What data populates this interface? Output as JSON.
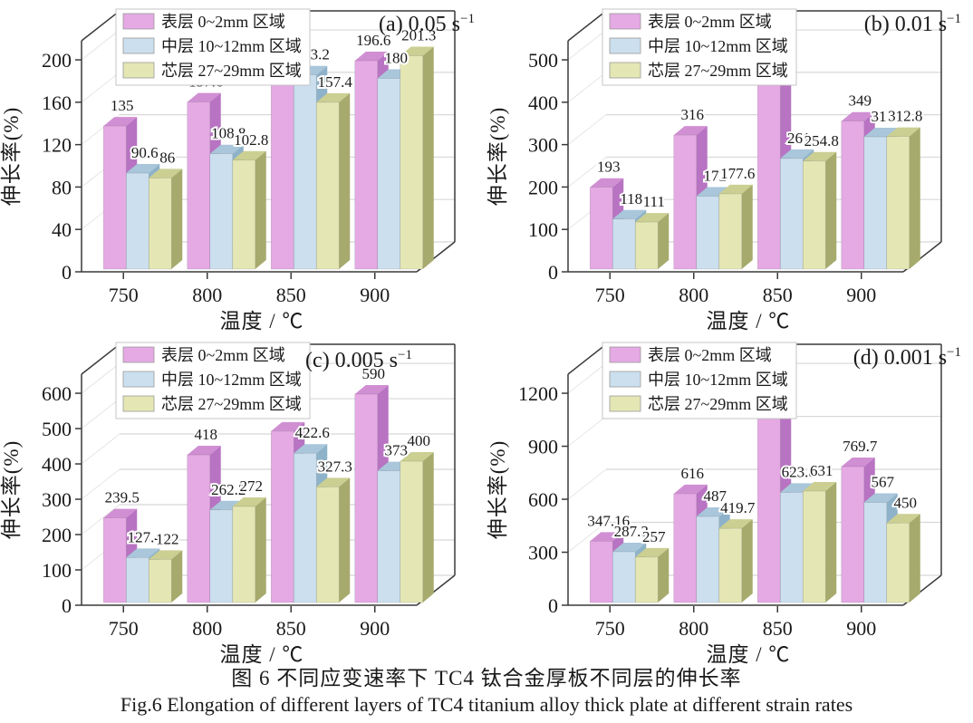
{
  "figure_caption": {
    "zh": "图 6  不同应变速率下 TC4 钛合金厚板不同层的伸长率",
    "en": "Fig.6  Elongation of different layers of TC4 titanium alloy thick plate at different strain rates"
  },
  "colors": {
    "axis": "#3a3a3a",
    "grid_back_wall": "#d8d8d8",
    "grid_left_wall": "#e6e6e6",
    "text": "#1a1a1a",
    "legend_border": "#c4c4c4",
    "legend_background": "#ffffff"
  },
  "series_styles": [
    {
      "name": "表层 0~2mm 区域",
      "front": "#e5a9e4",
      "top": "#d08fd3",
      "side": "#b873c2"
    },
    {
      "name": "中层 10~12mm 区域",
      "front": "#cbdfee",
      "top": "#a9c6da",
      "side": "#8eb2c9"
    },
    {
      "name": "芯层 27~29mm 区域",
      "front": "#e4e6b4",
      "top": "#cbcf92",
      "side": "#a6aa6c"
    }
  ],
  "chart_data": [
    {
      "type": "bar",
      "panel": "(a)",
      "strain_rate": "0.05 s⁻¹",
      "rate_base": "0.05 s",
      "rate_sup": "−1",
      "title_align": "far-right",
      "categories": [
        "750",
        "800",
        "850",
        "900"
      ],
      "xlabel": "温度 / ℃",
      "ylabel": "伸长率(%)",
      "ylim": [
        0,
        200
      ],
      "yticks": [
        0,
        40,
        80,
        120,
        160,
        200
      ],
      "grid": "horizontal-back-wall",
      "legend_position": "top-left",
      "series": [
        {
          "name": "表层 0~2mm 区域",
          "values": [
            135,
            157.6,
            197.6,
            196.6
          ]
        },
        {
          "name": "中层 10~12mm 区域",
          "values": [
            90.6,
            108.8,
            183.2,
            180
          ]
        },
        {
          "name": "芯层 27~29mm 区域",
          "values": [
            86,
            102.8,
            157.4,
            201.3
          ]
        }
      ]
    },
    {
      "type": "bar",
      "panel": "(b)",
      "strain_rate": "0.01 s⁻¹",
      "rate_base": "0.01 s",
      "rate_sup": "−1",
      "title_align": "far-right",
      "categories": [
        "750",
        "800",
        "850",
        "900"
      ],
      "xlabel": "温度 / ℃",
      "ylabel": "伸长率(%)",
      "ylim": [
        0,
        500
      ],
      "yticks": [
        0,
        100,
        200,
        300,
        400,
        500
      ],
      "grid": "horizontal-back-wall",
      "legend_position": "top-left",
      "series": [
        {
          "name": "表层 0~2mm 区域",
          "values": [
            193,
            316,
            456,
            349
          ]
        },
        {
          "name": "中层 10~12mm 区域",
          "values": [
            118,
            172,
            261,
            312
          ]
        },
        {
          "name": "芯层 27~29mm 区域",
          "values": [
            111,
            177.6,
            254.8,
            312.8
          ]
        }
      ]
    },
    {
      "type": "bar",
      "panel": "(c)",
      "strain_rate": "0.005 s⁻¹",
      "rate_base": "0.005 s",
      "rate_sup": "−1",
      "title_align": "inner",
      "categories": [
        "750",
        "800",
        "850",
        "900"
      ],
      "xlabel": "温度 / ℃",
      "ylabel": "伸长率(%)",
      "ylim": [
        0,
        600
      ],
      "yticks": [
        0,
        100,
        200,
        300,
        400,
        500,
        600
      ],
      "grid": "horizontal-back-wall",
      "legend_position": "top-left",
      "series": [
        {
          "name": "表层 0~2mm 区域",
          "values": [
            239.5,
            418,
            485,
            590
          ]
        },
        {
          "name": "中层 10~12mm 区域",
          "values": [
            127.4,
            262.2,
            422.6,
            373
          ]
        },
        {
          "name": "芯层 27~29mm 区域",
          "values": [
            122,
            272,
            327.3,
            400
          ]
        }
      ]
    },
    {
      "type": "bar",
      "panel": "(d)",
      "strain_rate": "0.001 s⁻¹",
      "rate_base": "0.001 s",
      "rate_sup": "−1",
      "title_align": "far-right",
      "categories": [
        "750",
        "800",
        "850",
        "900"
      ],
      "xlabel": "温度 / ℃",
      "ylabel": "伸长率(%)",
      "ylim": [
        0,
        1200
      ],
      "yticks": [
        0,
        300,
        600,
        900,
        1200
      ],
      "grid": "horizontal-back-wall",
      "legend_position": "top-left",
      "series": [
        {
          "name": "表层 0~2mm 区域",
          "values": [
            347.16,
            616,
            1059,
            769.7
          ]
        },
        {
          "name": "中层 10~12mm 区域",
          "values": [
            287.3,
            487,
            623.8,
            567
          ]
        },
        {
          "name": "芯层 27~29mm 区域",
          "values": [
            257,
            419.7,
            631,
            450
          ]
        }
      ]
    }
  ]
}
